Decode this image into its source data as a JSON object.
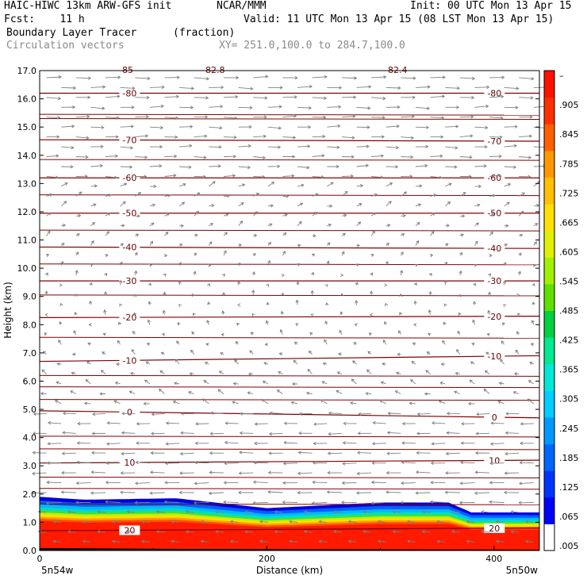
{
  "header": {
    "line1_left": "HAIC-HIWC 13km ARW-GFS init",
    "line1_mid": "NCAR/MMM",
    "line1_right": "Init: 00 UTC Mon 13 Apr 15",
    "line2_left": "Fcst:    11 h",
    "line2_right": "Valid: 11 UTC Mon 13 Apr 15 (08 LST Mon 13 Apr 15)",
    "line3_left": "Boundary Layer Tracer",
    "line3_mid": "(fraction)",
    "line4_left": "Circulation vectors",
    "line4_mid": "XY= 251.0,100.0 to 284.7,100.0"
  },
  "chart_data": {
    "type": "heatmap",
    "title": "Boundary Layer Tracer",
    "units": "(fraction)",
    "xlabel": "Distance (km)",
    "ylabel": "Height (km)",
    "xlim": [
      0,
      440
    ],
    "ylim": [
      0.0,
      17.0
    ],
    "x_ticks": [
      "0",
      "200",
      "400"
    ],
    "x_tick_values": [
      0,
      200,
      400
    ],
    "y_ticks": [
      "0.0",
      "1.0",
      "2.0",
      "3.0",
      "4.0",
      "5.0",
      "6.0",
      "7.0",
      "8.0",
      "9.0",
      "10.0",
      "11.0",
      "12.0",
      "13.0",
      "14.0",
      "15.0",
      "16.0",
      "17.0"
    ],
    "x_endpoints": {
      "left": "5n54w",
      "right": "5n50w"
    },
    "colorbar": {
      "labels": [
        ".005",
        ".065",
        ".125",
        ".185",
        ".245",
        ".305",
        ".365",
        ".425",
        ".485",
        ".545",
        ".605",
        ".665",
        ".725",
        ".785",
        ".845",
        ".905",
        "–"
      ],
      "colors": [
        "#ffffff",
        "#0000ff",
        "#0033ff",
        "#0066ff",
        "#0099ff",
        "#00ccff",
        "#00e8d8",
        "#00e890",
        "#00d040",
        "#60e000",
        "#a0f000",
        "#e0f000",
        "#ffe000",
        "#ffc000",
        "#ff9800",
        "#ff6000",
        "#ff3000",
        "#ff1000"
      ]
    },
    "tracer_top_km": [
      {
        "x": 0,
        "top": 1.9
      },
      {
        "x": 40,
        "top": 1.8
      },
      {
        "x": 120,
        "top": 1.85
      },
      {
        "x": 200,
        "top": 1.5
      },
      {
        "x": 250,
        "top": 1.6
      },
      {
        "x": 300,
        "top": 1.7
      },
      {
        "x": 360,
        "top": 1.7
      },
      {
        "x": 380,
        "top": 1.35
      },
      {
        "x": 440,
        "top": 1.35
      }
    ],
    "isotherms_C": [
      {
        "value": "20",
        "z_left": 0.7,
        "z_right": 0.8,
        "label_pos": [
          "left",
          "right"
        ],
        "labels": [
          "20",
          "20"
        ]
      },
      {
        "value": "10",
        "z_left": 3.1,
        "z_right": 3.2,
        "labels": [
          "10",
          "10"
        ]
      },
      {
        "value": "0",
        "z_left": 4.95,
        "z_right": 4.7,
        "labels": [
          "0",
          "0"
        ]
      },
      {
        "value": "-10",
        "z_left": 6.7,
        "z_right": 6.9,
        "labels": [
          "-10",
          "-10"
        ]
      },
      {
        "value": "-20",
        "z_left": 8.25,
        "z_right": 8.3,
        "labels": [
          "-20",
          "-20"
        ]
      },
      {
        "value": "-30",
        "z_left": 9.55,
        "z_right": 9.55,
        "labels": [
          "-30",
          "-30"
        ]
      },
      {
        "value": "-40",
        "z_left": 10.75,
        "z_right": 10.7,
        "labels": [
          "-40",
          "-40"
        ]
      },
      {
        "value": "-50",
        "z_left": 11.95,
        "z_right": 11.95,
        "labels": [
          "-50",
          "-50"
        ]
      },
      {
        "value": "-60",
        "z_left": 13.2,
        "z_right": 13.2,
        "labels": [
          "-60",
          "-60"
        ]
      },
      {
        "value": "-70",
        "z_left": 14.55,
        "z_right": 14.5,
        "labels": [
          "-70",
          "-70"
        ]
      },
      {
        "value": "-80",
        "z_left": 16.2,
        "z_right": 16.2,
        "labels": [
          "-80",
          "-80"
        ]
      }
    ],
    "extra_isotherm_heights_km": [
      1.65,
      2.2,
      2.6,
      3.6,
      4.05,
      5.35,
      5.8,
      6.2,
      7.55,
      9.05,
      10.15,
      11.35,
      12.6,
      13.85,
      15.3,
      15.45
    ],
    "top_partial_labels": [
      "-85",
      "-82.8",
      "-82.4"
    ],
    "vectors": {
      "upper_levels_km_from": 13.0,
      "upper_direction": "east",
      "lower_levels_km_to": 5.0,
      "lower_direction": "west",
      "color": "#707070"
    }
  },
  "colors": {
    "isotherm": "#800000",
    "vector": "#808080"
  }
}
